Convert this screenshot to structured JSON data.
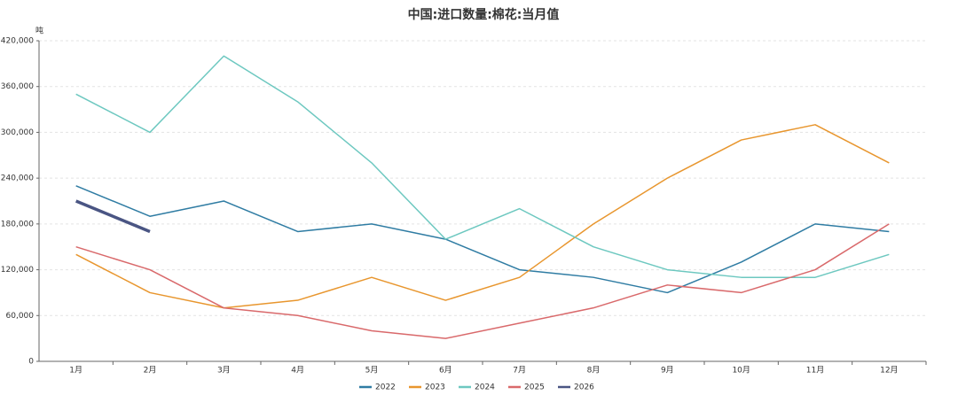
{
  "chart_data": {
    "type": "line",
    "title": "中国:进口数量:棉花:当月值",
    "y_unit": "吨",
    "categories": [
      "1月",
      "2月",
      "3月",
      "4月",
      "5月",
      "6月",
      "7月",
      "8月",
      "9月",
      "10月",
      "11月",
      "12月"
    ],
    "series": [
      {
        "name": "2022",
        "color": "#2f7ca3",
        "width": 1.5,
        "values": [
          230000,
          190000,
          210000,
          170000,
          180000,
          160000,
          120000,
          110000,
          90000,
          130000,
          180000,
          170000
        ]
      },
      {
        "name": "2023",
        "color": "#e8962e",
        "width": 1.5,
        "values": [
          140000,
          90000,
          70000,
          80000,
          110000,
          80000,
          110000,
          180000,
          240000,
          290000,
          310000,
          260000
        ]
      },
      {
        "name": "2024",
        "color": "#6dc8c0",
        "width": 1.5,
        "values": [
          350000,
          300000,
          400000,
          340000,
          260000,
          160000,
          200000,
          150000,
          120000,
          110000,
          110000,
          140000
        ]
      },
      {
        "name": "2025",
        "color": "#d9696b",
        "width": 1.5,
        "values": [
          150000,
          120000,
          70000,
          60000,
          40000,
          30000,
          50000,
          70000,
          100000,
          90000,
          120000,
          180000
        ]
      },
      {
        "name": "2026",
        "color": "#4a5583",
        "width": 3.5,
        "values": [
          210000,
          170000,
          null,
          null,
          null,
          null,
          null,
          null,
          null,
          null,
          null,
          null
        ]
      }
    ],
    "ylim": [
      0,
      420000
    ],
    "yticks": [
      0,
      {
        "value": 60000,
        "label": "60,000"
      },
      {
        "value": 120000,
        "label": "120,000"
      },
      {
        "value": 180000,
        "label": "180,000"
      },
      {
        "value": 240000,
        "label": "240,000"
      },
      {
        "value": 300000,
        "label": "300,000"
      },
      {
        "value": 360000,
        "label": "360,000"
      },
      {
        "value": 420000,
        "label": "420,000"
      }
    ],
    "grid": true,
    "legend": "bottom"
  }
}
